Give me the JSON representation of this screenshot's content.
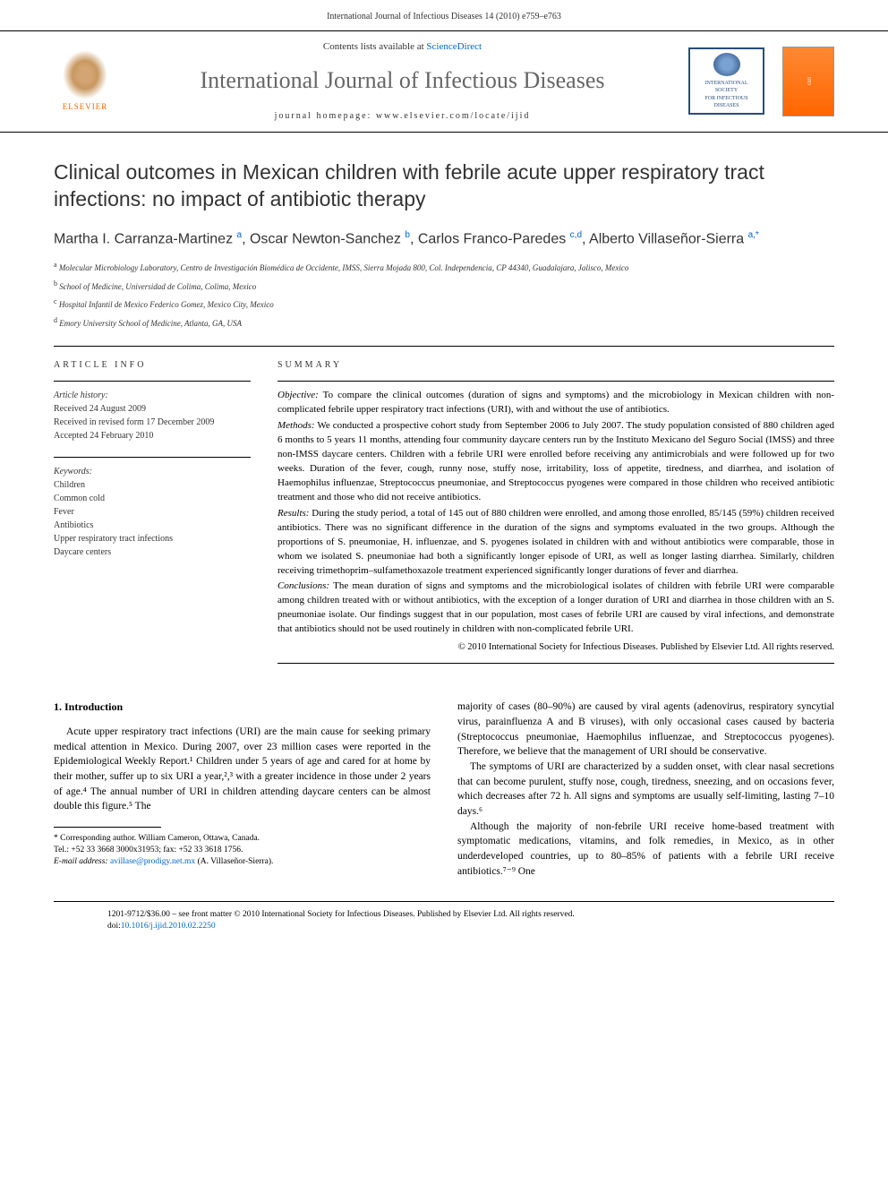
{
  "header": {
    "running": "International Journal of Infectious Diseases 14 (2010) e759–e763"
  },
  "masthead": {
    "elsevier": "ELSEVIER",
    "contents_prefix": "Contents lists available at ",
    "contents_link": "ScienceDirect",
    "journal": "International Journal of Infectious Diseases",
    "homepage_prefix": "journal homepage: ",
    "homepage": "www.elsevier.com/locate/ijid",
    "society_top": "INTERNATIONAL SOCIETY",
    "society_bottom": "FOR INFECTIOUS DISEASES",
    "cover": "IJID"
  },
  "article": {
    "title": "Clinical outcomes in Mexican children with febrile acute upper respiratory tract infections: no impact of antibiotic therapy",
    "authors_html": "Martha I. Carranza-Martinez <sup>a</sup>, Oscar Newton-Sanchez <sup>b</sup>, Carlos Franco-Paredes <sup>c,d</sup>, Alberto Villaseñor-Sierra <sup>a,*</sup>",
    "affiliations": [
      "a Molecular Microbiology Laboratory, Centro de Investigación Biomédica de Occidente, IMSS, Sierra Mojada 800, Col. Independencia, CP 44340, Guadalajara, Jalisco, Mexico",
      "b School of Medicine, Universidad de Colima, Colima, Mexico",
      "c Hospital Infantil de Mexico Federico Gomez, Mexico City, Mexico",
      "d Emory University School of Medicine, Atlanta, GA, USA"
    ]
  },
  "info": {
    "label": "ARTICLE INFO",
    "history_label": "Article history:",
    "history": [
      "Received 24 August 2009",
      "Received in revised form 17 December 2009",
      "Accepted 24 February 2010"
    ],
    "keywords_label": "Keywords:",
    "keywords": [
      "Children",
      "Common cold",
      "Fever",
      "Antibiotics",
      "Upper respiratory tract infections",
      "Daycare centers"
    ]
  },
  "summary": {
    "label": "SUMMARY",
    "objective_label": "Objective:",
    "objective": "To compare the clinical outcomes (duration of signs and symptoms) and the microbiology in Mexican children with non-complicated febrile upper respiratory tract infections (URI), with and without the use of antibiotics.",
    "methods_label": "Methods:",
    "methods": "We conducted a prospective cohort study from September 2006 to July 2007. The study population consisted of 880 children aged 6 months to 5 years 11 months, attending four community daycare centers run by the Instituto Mexicano del Seguro Social (IMSS) and three non-IMSS daycare centers. Children with a febrile URI were enrolled before receiving any antimicrobials and were followed up for two weeks. Duration of the fever, cough, runny nose, stuffy nose, irritability, loss of appetite, tiredness, and diarrhea, and isolation of Haemophilus influenzae, Streptococcus pneumoniae, and Streptococcus pyogenes were compared in those children who received antibiotic treatment and those who did not receive antibiotics.",
    "results_label": "Results:",
    "results": "During the study period, a total of 145 out of 880 children were enrolled, and among those enrolled, 85/145 (59%) children received antibiotics. There was no significant difference in the duration of the signs and symptoms evaluated in the two groups. Although the proportions of S. pneumoniae, H. influenzae, and S. pyogenes isolated in children with and without antibiotics were comparable, those in whom we isolated S. pneumoniae had both a significantly longer episode of URI, as well as longer lasting diarrhea. Similarly, children receiving trimethoprim–sulfamethoxazole treatment experienced significantly longer durations of fever and diarrhea.",
    "conclusions_label": "Conclusions:",
    "conclusions": "The mean duration of signs and symptoms and the microbiological isolates of children with febrile URI were comparable among children treated with or without antibiotics, with the exception of a longer duration of URI and diarrhea in those children with an S. pneumoniae isolate. Our findings suggest that in our population, most cases of febrile URI are caused by viral infections, and demonstrate that antibiotics should not be used routinely in children with non-complicated febrile URI.",
    "copyright": "© 2010 International Society for Infectious Diseases. Published by Elsevier Ltd. All rights reserved."
  },
  "body": {
    "intro_heading": "1. Introduction",
    "left_para": "Acute upper respiratory tract infections (URI) are the main cause for seeking primary medical attention in Mexico. During 2007, over 23 million cases were reported in the Epidemiological Weekly Report.¹ Children under 5 years of age and cared for at home by their mother, suffer up to six URI a year,²,³ with a greater incidence in those under 2 years of age.⁴ The annual number of URI in children attending daycare centers can be almost double this figure.⁵ The",
    "right_para1": "majority of cases (80–90%) are caused by viral agents (adenovirus, respiratory syncytial virus, parainfluenza A and B viruses), with only occasional cases caused by bacteria (Streptococcus pneumoniae, Haemophilus influenzae, and Streptococcus pyogenes). Therefore, we believe that the management of URI should be conservative.",
    "right_para2": "The symptoms of URI are characterized by a sudden onset, with clear nasal secretions that can become purulent, stuffy nose, cough, tiredness, sneezing, and on occasions fever, which decreases after 72 h. All signs and symptoms are usually self-limiting, lasting 7–10 days.⁶",
    "right_para3": "Although the majority of non-febrile URI receive home-based treatment with symptomatic medications, vitamins, and folk remedies, in Mexico, as in other underdeveloped countries, up to 80–85% of patients with a febrile URI receive antibiotics.⁷⁻⁹ One"
  },
  "footnote": {
    "corr": "* Corresponding author. William Cameron, Ottawa, Canada.",
    "tel": "Tel.: +52 33 3668 3000x31953; fax: +52 33 3618 1756.",
    "email_label": "E-mail address:",
    "email": "avillase@prodigy.net.mx",
    "email_owner": "(A. Villaseñor-Sierra)."
  },
  "footer": {
    "line1": "1201-9712/$36.00 – see front matter © 2010 International Society for Infectious Diseases. Published by Elsevier Ltd. All rights reserved.",
    "doi_label": "doi:",
    "doi": "10.1016/j.ijid.2010.02.2250"
  }
}
